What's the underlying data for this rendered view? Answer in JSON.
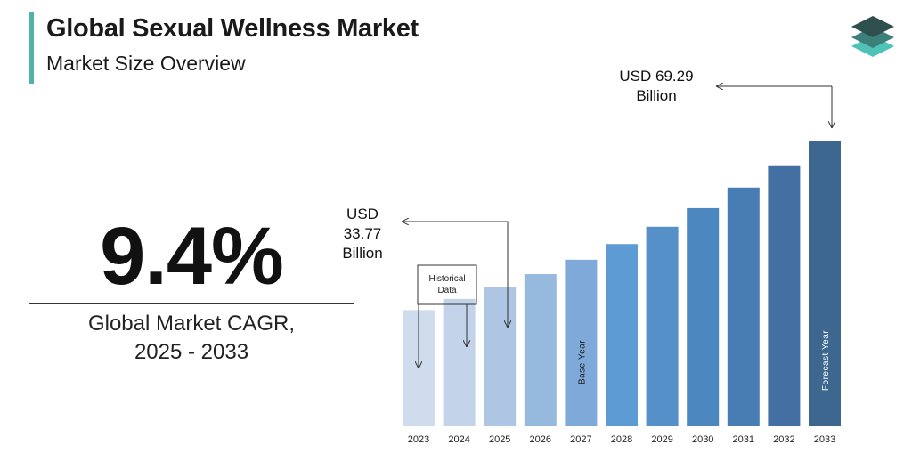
{
  "header": {
    "title": "Global Sexual Wellness Market",
    "subtitle": "Market Size Overview"
  },
  "cagr": {
    "value": "9.4%",
    "label_line1": "Global Market CAGR,",
    "label_line2": "2025 - 2033"
  },
  "logo": {
    "icon": "stacked-layers-icon",
    "colors": [
      "#2f4f4f",
      "#3d7f7a",
      "#4fc3b8"
    ]
  },
  "chart_data": {
    "type": "bar",
    "categories": [
      "2023",
      "2024",
      "2025",
      "2026",
      "2027",
      "2028",
      "2029",
      "2030",
      "2031",
      "2032",
      "2033"
    ],
    "values": [
      28.2,
      30.9,
      33.77,
      36.9,
      40.4,
      44.2,
      48.4,
      52.9,
      57.9,
      63.3,
      69.29
    ],
    "colors": [
      "#cfdcee",
      "#c3d4ea",
      "#aec6e3",
      "#96b9de",
      "#7ea9d9",
      "#5d9bd4",
      "#5591c8",
      "#4c87bf",
      "#477db3",
      "#436fa3",
      "#3e6790"
    ],
    "ylim": [
      0,
      75
    ],
    "bar_labels": [
      {
        "category": "2027",
        "text": "Base Year"
      },
      {
        "category": "2033",
        "text": "Forecast Year"
      }
    ],
    "annotations": {
      "historical": "Historical Data",
      "start_value": {
        "category": "2025",
        "lines": [
          "USD",
          "33.77",
          "Billion"
        ]
      },
      "end_value": {
        "category": "2033",
        "lines": [
          "USD 69.29",
          "Billion"
        ]
      }
    }
  }
}
